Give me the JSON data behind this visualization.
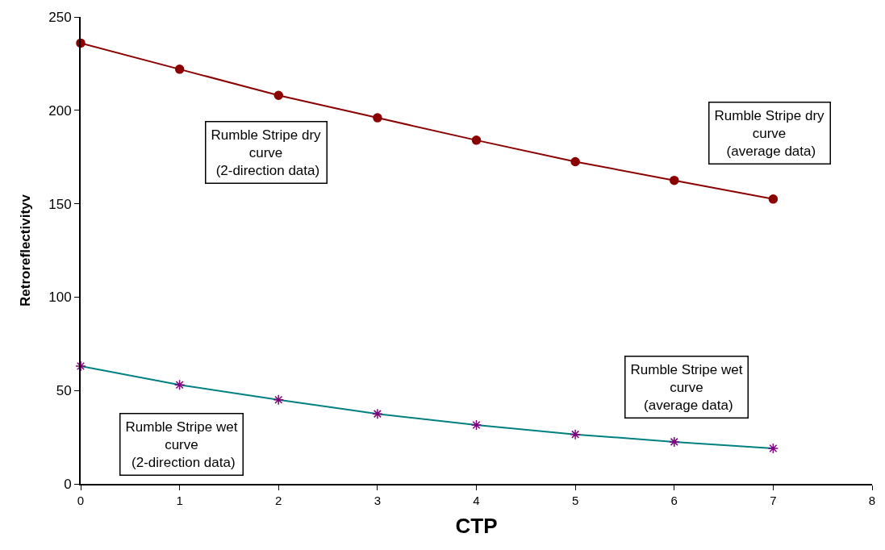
{
  "chart_data": {
    "type": "line",
    "xlabel": "CTP",
    "ylabel": "Retroreflectivityv",
    "x": [
      0,
      1,
      2,
      3,
      4,
      5,
      6,
      7
    ],
    "series": [
      {
        "color": "#8b0000",
        "marker": "circle",
        "values": [
          236,
          222,
          208,
          196,
          184,
          172.5,
          162.5,
          152.5
        ]
      },
      {
        "color": "#008080",
        "marker": "none",
        "values": [
          63,
          53,
          45,
          37.5,
          31.5,
          26.5,
          22.5,
          19
        ]
      },
      {
        "type": "scatter",
        "color": "#800080",
        "marker": "cross",
        "values": [
          63,
          53,
          45,
          37.5,
          31.5,
          26.5,
          22.5,
          19
        ]
      }
    ],
    "xlim": [
      0,
      8
    ],
    "xticks": [
      0,
      1,
      2,
      3,
      4,
      5,
      6,
      7,
      8
    ],
    "ylim": [
      0,
      250
    ],
    "yticks": [
      0,
      50,
      100,
      150,
      200,
      250
    ],
    "line_style": "solid",
    "annotations": [
      "Rumble Stripe dry\ncurve\n (2-direction data)",
      "Rumble Stripe dry\ncurve\n (average data)",
      "Rumble Stripe wet\ncurve\n (2-direction data)",
      "Rumble Stripe wet\ncurve\n (average data)"
    ]
  }
}
